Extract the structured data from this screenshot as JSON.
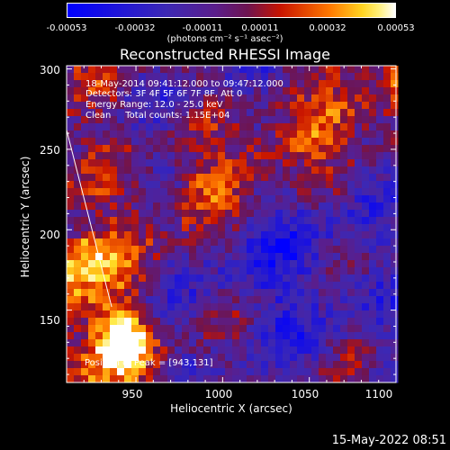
{
  "colorbar": {
    "tick_labels": [
      "-0.00053",
      "-0.00032",
      "-0.00011",
      "0.00011",
      "0.00032",
      "0.00053"
    ],
    "tick_values": [
      -0.00053,
      -0.00032,
      -0.00011,
      0.00011,
      0.00032,
      0.00053
    ],
    "range": [
      -0.00053,
      0.00053
    ],
    "units": "(photons cm⁻² s⁻¹ asec⁻²)"
  },
  "chart_data": {
    "type": "heatmap",
    "title": "Reconstructed RHESSI Image",
    "xlabel": "Heliocentric X (arcsec)",
    "ylabel": "Heliocentric Y (arcsec)",
    "xlim": [
      910,
      1100
    ],
    "ylim": [
      105,
      302
    ],
    "x_ticks": [
      950,
      1000,
      1050,
      1100
    ],
    "y_ticks": [
      150,
      200,
      250,
      300
    ],
    "annotations": [
      "18-May-2014 09:41:12.000 to 09:47:12.000",
      "Detectors: 3F 4F 5F 6F 7F 8F, Att 0",
      "Energy Range: 12.0 - 25.0 keV",
      "Clean     Total counts: 1.15E+04"
    ],
    "peak_label": "Position of Peak = [943,131]",
    "peak": [
      943,
      131
    ],
    "colormap": "blue-purple-red-yellow-white",
    "limb_line": [
      [
        910,
        262
      ],
      [
        936,
        152
      ]
    ]
  },
  "footer": {
    "timestamp": "15-May-2022 08:51"
  }
}
